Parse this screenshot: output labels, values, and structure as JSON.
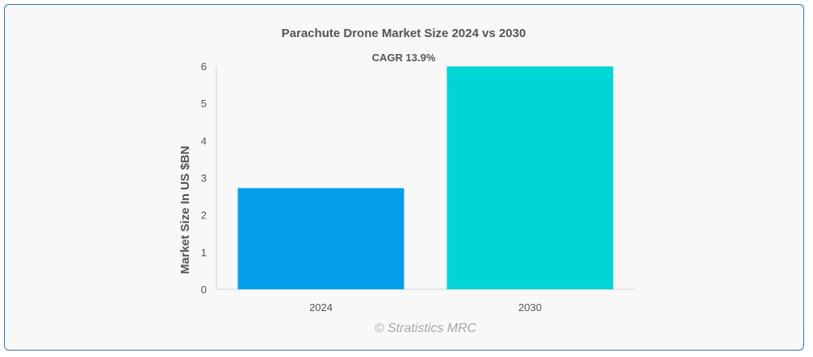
{
  "chart_data": {
    "type": "bar",
    "title": "Parachute Drone Market Size 2024 vs 2030",
    "ylabel": "Market Size In US $BN",
    "xlabel": "",
    "categories": [
      "2024",
      "2030"
    ],
    "values": [
      2.72,
      5.99
    ],
    "ylim": [
      0,
      6
    ],
    "yticks": [
      0,
      1,
      2,
      3,
      4,
      5,
      6
    ],
    "grid": false,
    "bar_colors": [
      "#049fea",
      "#00d4d4"
    ],
    "annotations": [
      {
        "text": "CAGR 13.9%"
      }
    ]
  },
  "watermark": "© Stratistics MRC"
}
